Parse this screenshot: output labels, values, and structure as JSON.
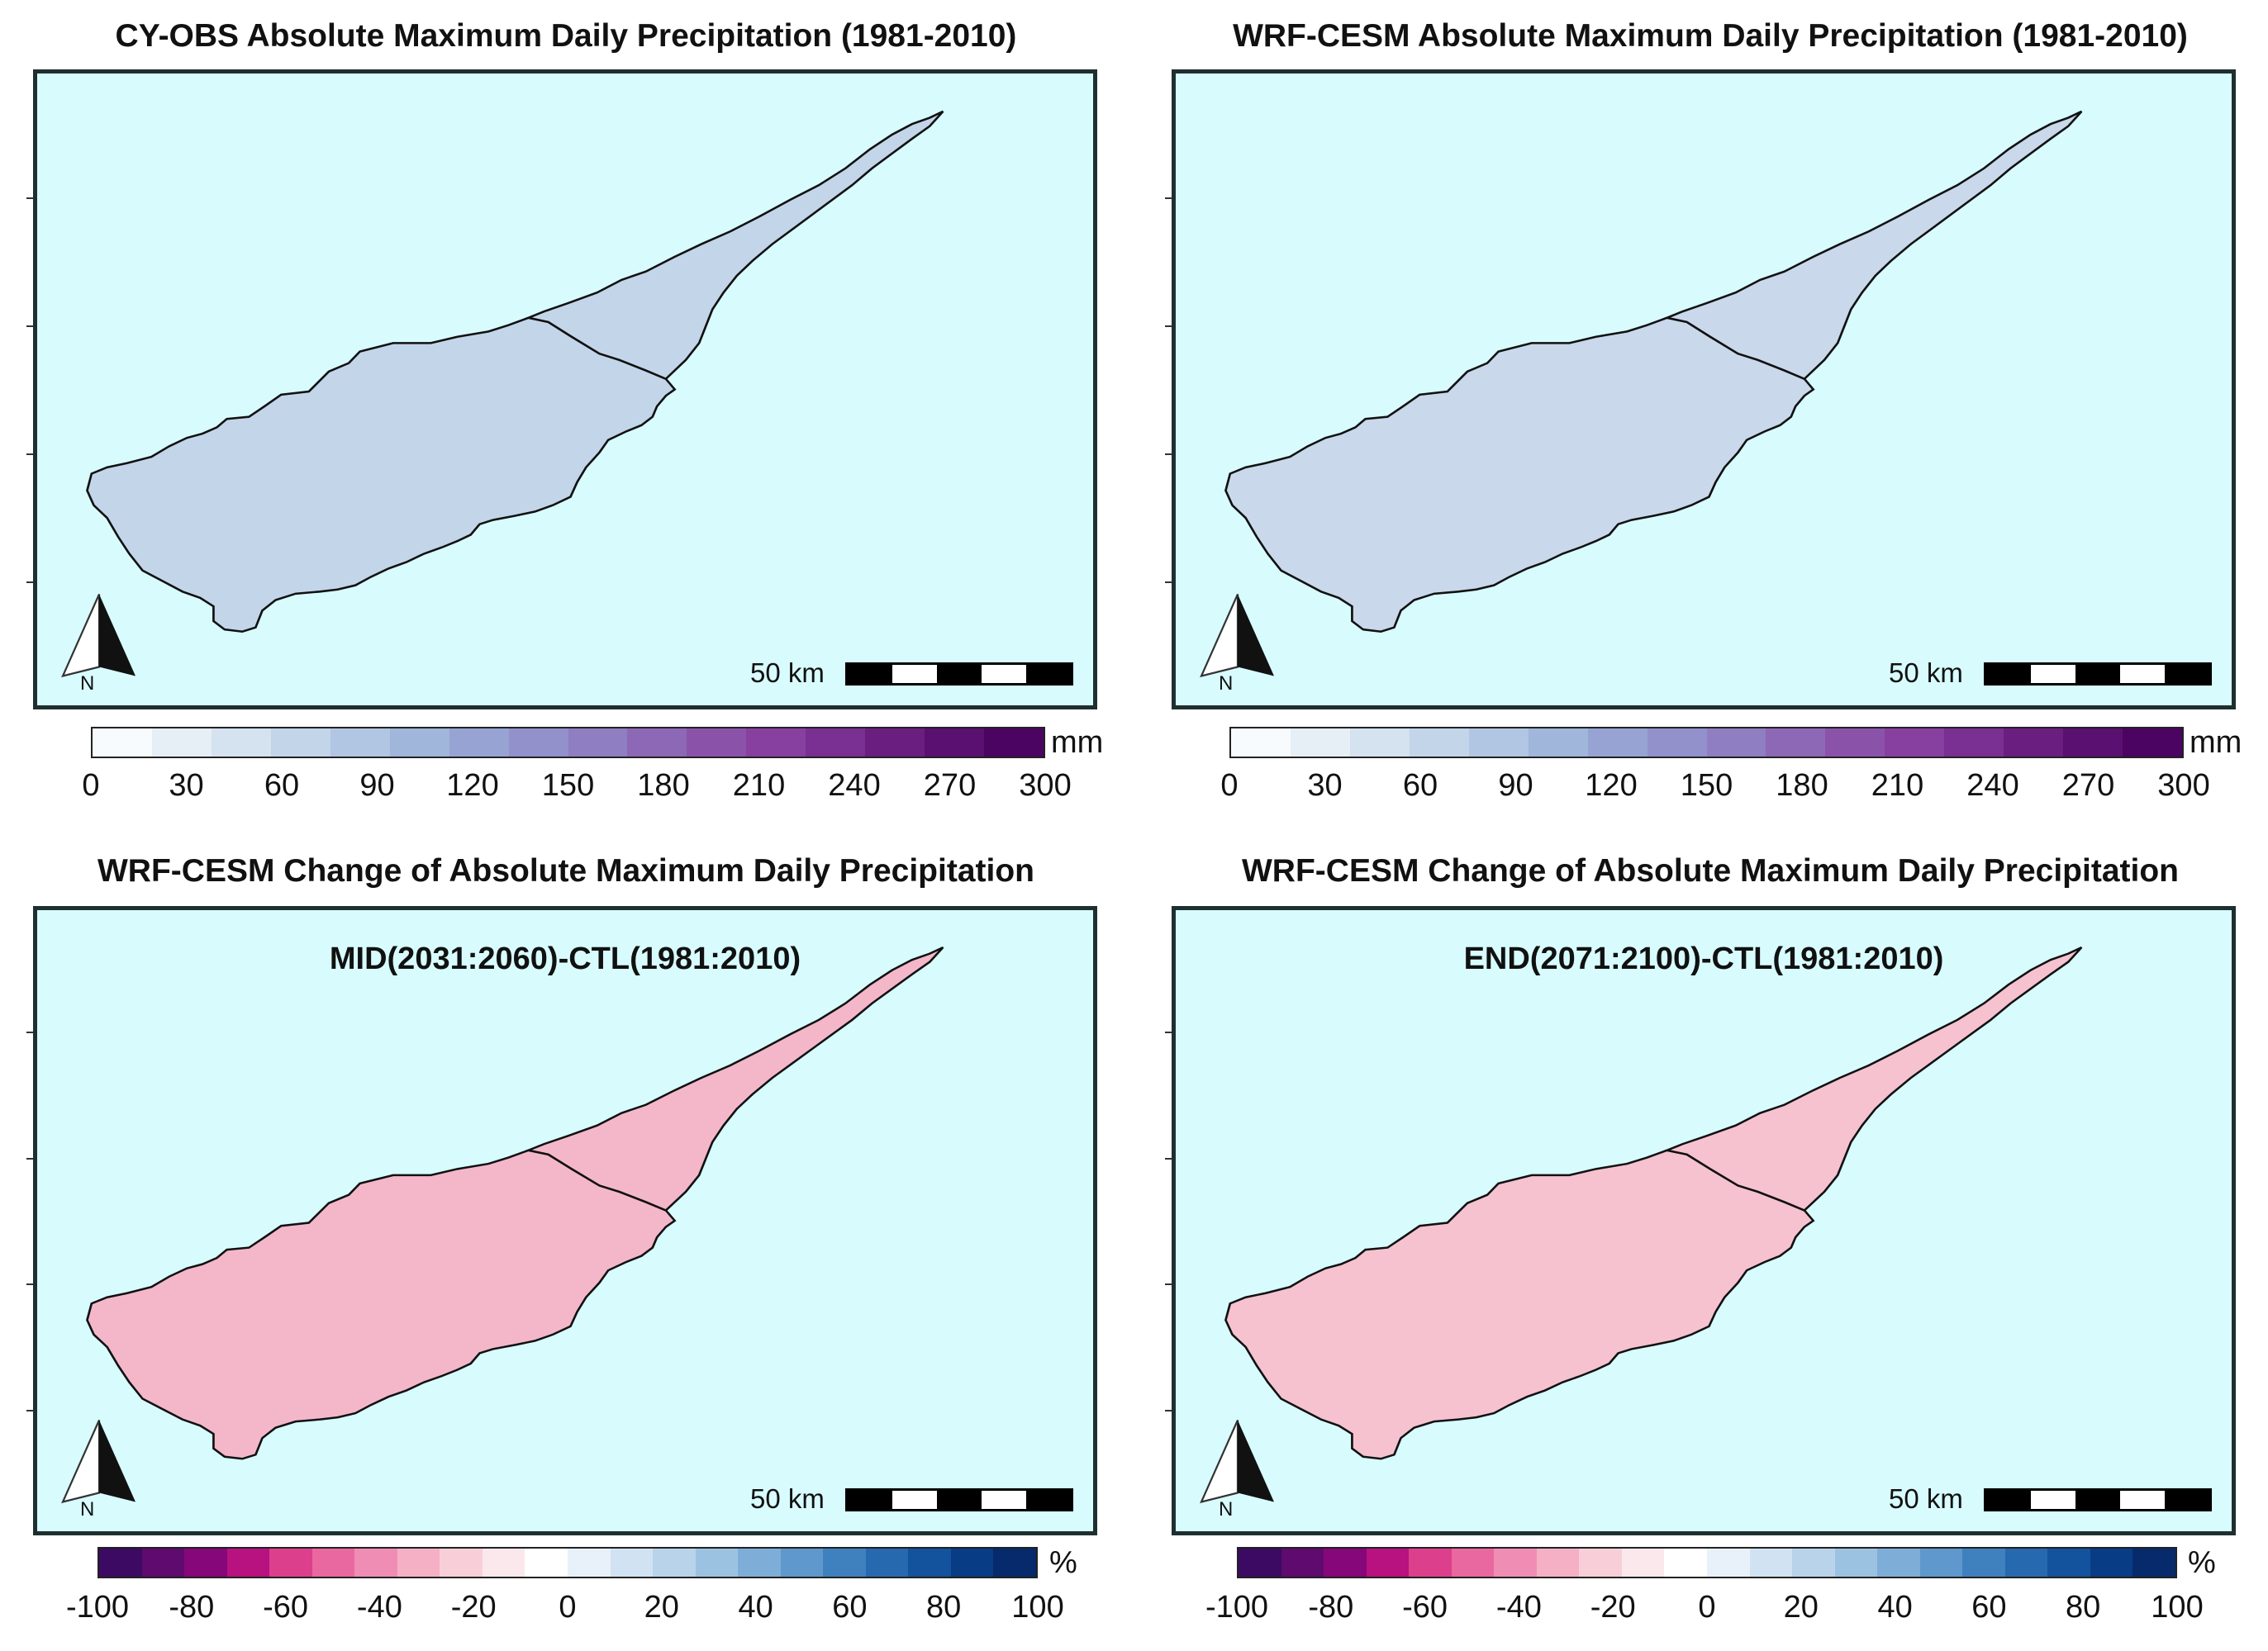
{
  "panels": [
    {
      "title": "CY-OBS Absolute Maximum Daily Precipitation (1981-2010)",
      "subtitle": "",
      "scale_label": "50 km",
      "north_label": "N",
      "colorbar": {
        "unit": "mm",
        "ticks": [
          "0",
          "30",
          "60",
          "90",
          "120",
          "150",
          "180",
          "210",
          "240",
          "270",
          "300"
        ],
        "colors": [
          "#f7fbfd",
          "#e6eef6",
          "#d5e2ef",
          "#c3d5e9",
          "#b1c6e2",
          "#a0b6da",
          "#97a4d3",
          "#9291cb",
          "#8f7ec1",
          "#8d68b6",
          "#8b52aa",
          "#87409f",
          "#7a2f92",
          "#6a1e80",
          "#5a1070",
          "#4b0461"
        ]
      },
      "fill": "#c3d5e9"
    },
    {
      "title": "WRF-CESM Absolute Maximum Daily Precipitation (1981-2010)",
      "subtitle": "",
      "scale_label": "50 km",
      "north_label": "N",
      "colorbar": {
        "unit": "mm",
        "ticks": [
          "0",
          "30",
          "60",
          "90",
          "120",
          "150",
          "180",
          "210",
          "240",
          "270",
          "300"
        ],
        "colors": [
          "#f7fbfd",
          "#e6eef6",
          "#d5e2ef",
          "#c3d5e9",
          "#b1c6e2",
          "#a0b6da",
          "#97a4d3",
          "#9291cb",
          "#8f7ec1",
          "#8d68b6",
          "#8b52aa",
          "#87409f",
          "#7a2f92",
          "#6a1e80",
          "#5a1070",
          "#4b0461"
        ]
      },
      "fill": "#c9d8ea"
    },
    {
      "title": "WRF-CESM Change of Absolute Maximum Daily Precipitation",
      "subtitle": "MID(2031:2060)-CTL(1981:2010)",
      "scale_label": "50 km",
      "north_label": "N",
      "colorbar": {
        "unit": "%",
        "ticks": [
          "-100",
          "-80",
          "-60",
          "-40",
          "-20",
          "0",
          "20",
          "40",
          "60",
          "80",
          "100"
        ],
        "colors": [
          "#3d0a63",
          "#5e0a6e",
          "#86077a",
          "#b7127f",
          "#dc3f8c",
          "#e9689f",
          "#f08db5",
          "#f5b0c6",
          "#f8cfd8",
          "#fbe8ec",
          "#ffffff",
          "#e8f1f9",
          "#d1e3f2",
          "#b8d3ea",
          "#9cc2e2",
          "#7eaed8",
          "#5e98cc",
          "#3f80be",
          "#2769ae",
          "#13529c",
          "#083c85",
          "#062a6b"
        ]
      },
      "fill": "#f4b7c9"
    },
    {
      "title": "WRF-CESM Change of Absolute Maximum Daily Precipitation",
      "subtitle": "END(2071:2100)-CTL(1981:2010)",
      "scale_label": "50 km",
      "north_label": "N",
      "colorbar": {
        "unit": "%",
        "ticks": [
          "-100",
          "-80",
          "-60",
          "-40",
          "-20",
          "0",
          "20",
          "40",
          "60",
          "80",
          "100"
        ],
        "colors": [
          "#3d0a63",
          "#5e0a6e",
          "#86077a",
          "#b7127f",
          "#dc3f8c",
          "#e9689f",
          "#f08db5",
          "#f5b0c6",
          "#f8cfd8",
          "#fbe8ec",
          "#ffffff",
          "#e8f1f9",
          "#d1e3f2",
          "#b8d3ea",
          "#9cc2e2",
          "#7eaed8",
          "#5e98cc",
          "#3f80be",
          "#2769ae",
          "#13529c",
          "#083c85",
          "#062a6b"
        ]
      },
      "fill": "#f6c2d0"
    }
  ]
}
